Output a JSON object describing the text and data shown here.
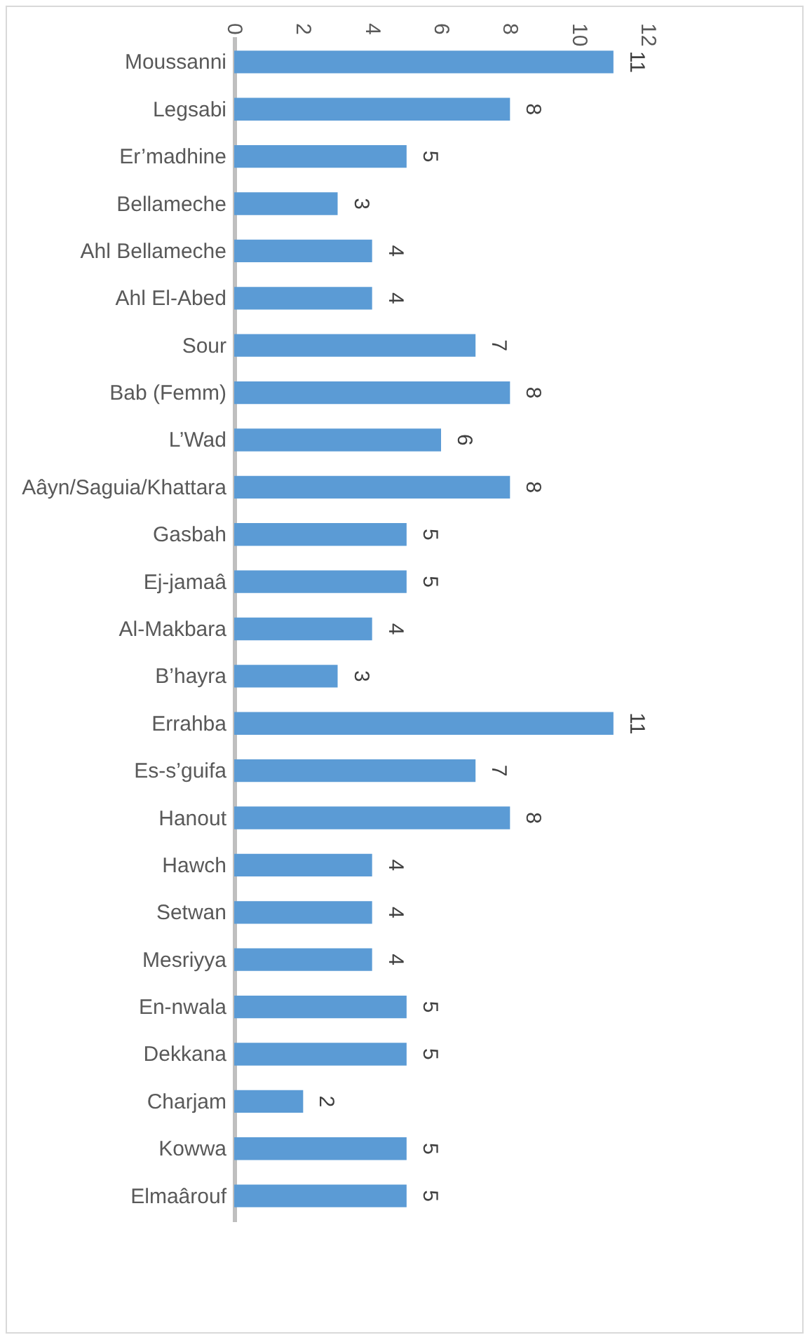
{
  "chart_data": {
    "type": "bar",
    "orientation": "horizontal",
    "categories": [
      "Moussanni",
      "Legsabi",
      "Er’madhine",
      "Bellameche",
      "Ahl Bellameche",
      "Ahl El-Abed",
      "Sour",
      "Bab (Femm)",
      "L’Wad",
      "Aâyn/Saguia/Khattara",
      "Gasbah",
      "Ej-jamaâ",
      "Al-Makbara",
      "B’hayra",
      "Errahba",
      "Es-s’guifa",
      "Hanout",
      "Hawch",
      "Setwan",
      "Mesriyya",
      "En-nwala",
      "Dekkana",
      "Charjam",
      "Kowwa",
      "Elmaârouf"
    ],
    "values": [
      11,
      8,
      5,
      3,
      4,
      4,
      7,
      8,
      6,
      8,
      5,
      5,
      4,
      3,
      11,
      7,
      8,
      4,
      4,
      4,
      5,
      5,
      2,
      5,
      5
    ],
    "color": "#5b9bd5",
    "xlim": [
      0,
      12
    ],
    "xticks": [
      0,
      2,
      4,
      6,
      8,
      10,
      12
    ],
    "data_labels": true,
    "grid": false
  }
}
